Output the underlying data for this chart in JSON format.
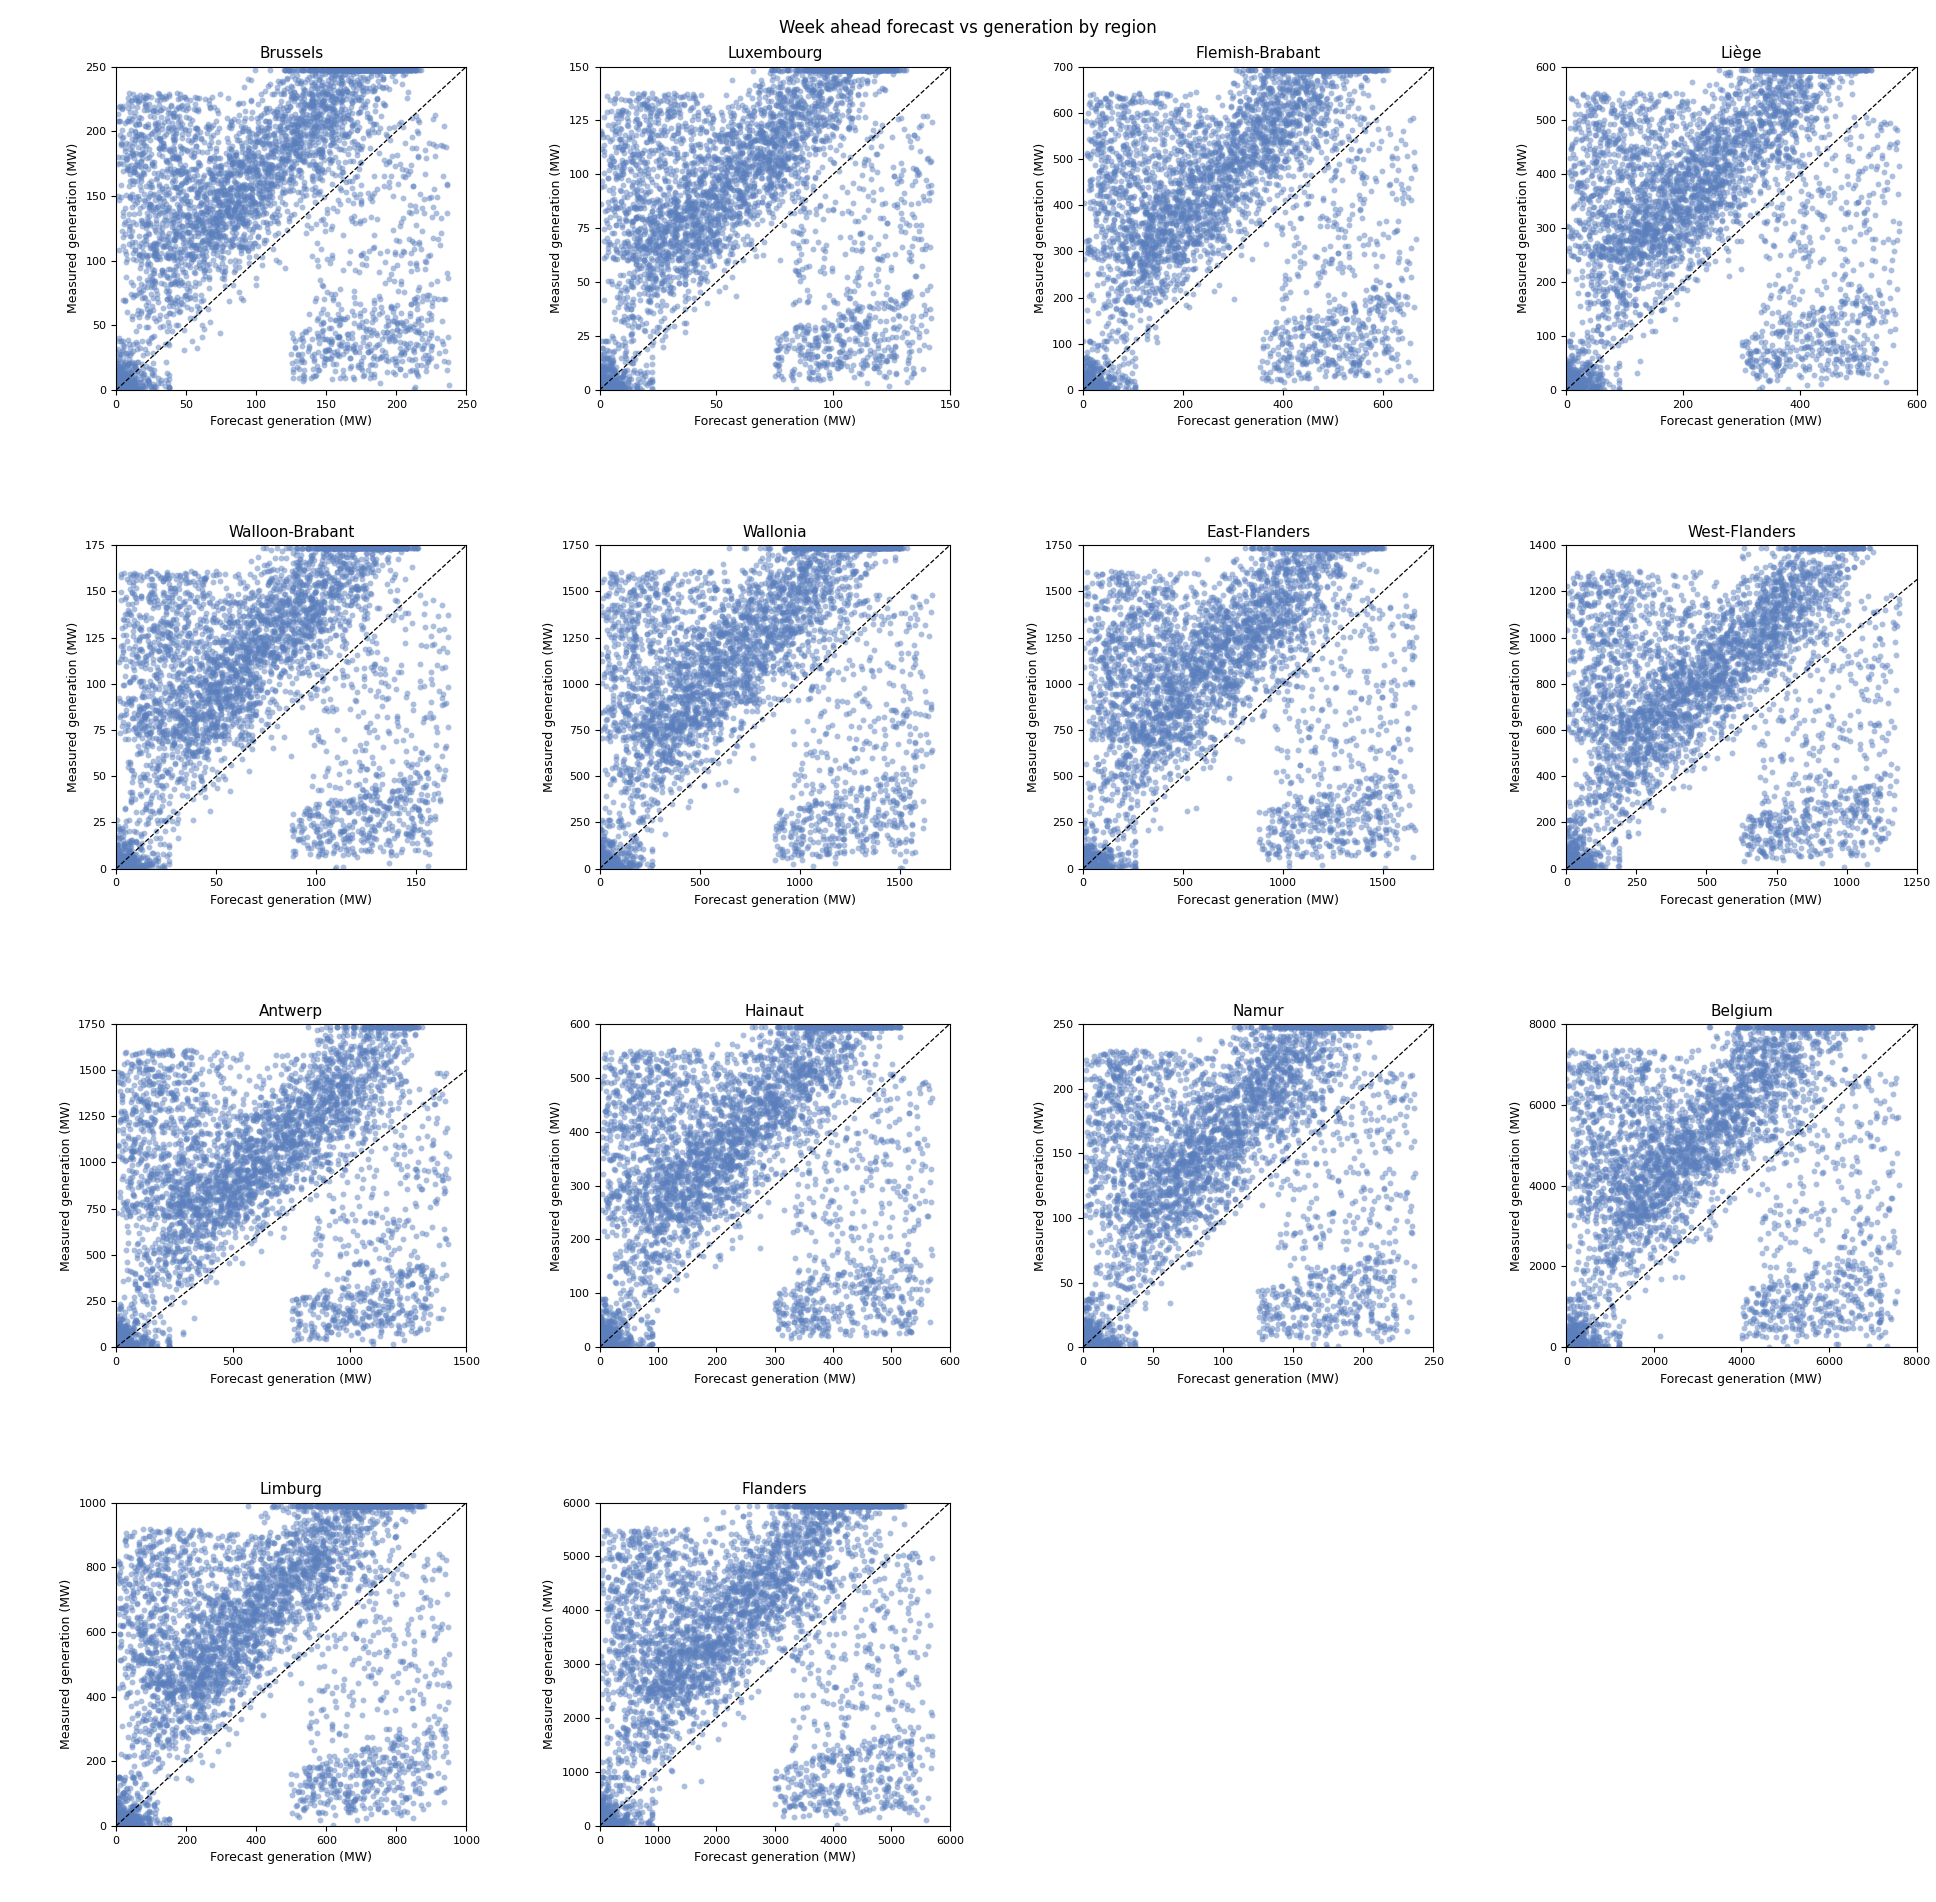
{
  "title": "Week ahead forecast vs generation by region",
  "subplots": [
    {
      "title": "Brussels",
      "xlim": [
        0,
        250
      ],
      "ylim": [
        0,
        250
      ],
      "xticks": [
        0,
        50,
        100,
        150,
        200,
        250
      ],
      "yticks": [
        0,
        50,
        100,
        150,
        200,
        250
      ]
    },
    {
      "title": "Luxembourg",
      "xlim": [
        0,
        150
      ],
      "ylim": [
        0,
        150
      ],
      "xticks": [
        0,
        50,
        100,
        150
      ],
      "yticks": [
        0,
        25,
        50,
        75,
        100,
        125,
        150
      ]
    },
    {
      "title": "Flemish-Brabant",
      "xlim": [
        0,
        700
      ],
      "ylim": [
        0,
        700
      ],
      "xticks": [
        0,
        200,
        400,
        600
      ],
      "yticks": [
        0,
        100,
        200,
        300,
        400,
        500,
        600,
        700
      ]
    },
    {
      "title": "Liège",
      "xlim": [
        0,
        600
      ],
      "ylim": [
        0,
        600
      ],
      "xticks": [
        0,
        200,
        400,
        600
      ],
      "yticks": [
        0,
        100,
        200,
        300,
        400,
        500,
        600
      ]
    },
    {
      "title": "Walloon-Brabant",
      "xlim": [
        0,
        175
      ],
      "ylim": [
        0,
        175
      ],
      "xticks": [
        0,
        50,
        100,
        150
      ],
      "yticks": [
        0,
        25,
        50,
        75,
        100,
        125,
        150,
        175
      ]
    },
    {
      "title": "Wallonia",
      "xlim": [
        0,
        1750
      ],
      "ylim": [
        0,
        1750
      ],
      "xticks": [
        0,
        500,
        1000,
        1500
      ],
      "yticks": [
        0,
        250,
        500,
        750,
        1000,
        1250,
        1500,
        1750
      ]
    },
    {
      "title": "East-Flanders",
      "xlim": [
        0,
        1750
      ],
      "ylim": [
        0,
        1750
      ],
      "xticks": [
        0,
        500,
        1000,
        1500
      ],
      "yticks": [
        0,
        250,
        500,
        750,
        1000,
        1250,
        1500,
        1750
      ]
    },
    {
      "title": "West-Flanders",
      "xlim": [
        0,
        1250
      ],
      "ylim": [
        0,
        1400
      ],
      "xticks": [
        0,
        250,
        500,
        750,
        1000,
        1250
      ],
      "yticks": [
        0,
        200,
        400,
        600,
        800,
        1000,
        1200,
        1400
      ]
    },
    {
      "title": "Antwerp",
      "xlim": [
        0,
        1500
      ],
      "ylim": [
        0,
        1750
      ],
      "xticks": [
        0,
        500,
        1000,
        1500
      ],
      "yticks": [
        0,
        250,
        500,
        750,
        1000,
        1250,
        1500,
        1750
      ]
    },
    {
      "title": "Hainaut",
      "xlim": [
        0,
        600
      ],
      "ylim": [
        0,
        600
      ],
      "xticks": [
        0,
        100,
        200,
        300,
        400,
        500,
        600
      ],
      "yticks": [
        0,
        100,
        200,
        300,
        400,
        500,
        600
      ]
    },
    {
      "title": "Namur",
      "xlim": [
        0,
        250
      ],
      "ylim": [
        0,
        250
      ],
      "xticks": [
        0,
        50,
        100,
        150,
        200,
        250
      ],
      "yticks": [
        0,
        50,
        100,
        150,
        200,
        250
      ]
    },
    {
      "title": "Belgium",
      "xlim": [
        0,
        8000
      ],
      "ylim": [
        0,
        8000
      ],
      "xticks": [
        0,
        2000,
        4000,
        6000,
        8000
      ],
      "yticks": [
        0,
        2000,
        4000,
        6000,
        8000
      ]
    },
    {
      "title": "Limburg",
      "xlim": [
        0,
        1000
      ],
      "ylim": [
        0,
        1000
      ],
      "xticks": [
        0,
        200,
        400,
        600,
        800,
        1000
      ],
      "yticks": [
        0,
        200,
        400,
        600,
        800,
        1000
      ]
    },
    {
      "title": "Flanders",
      "xlim": [
        0,
        6000
      ],
      "ylim": [
        0,
        6000
      ],
      "xticks": [
        0,
        1000,
        2000,
        3000,
        4000,
        5000,
        6000
      ],
      "yticks": [
        0,
        1000,
        2000,
        3000,
        4000,
        5000,
        6000
      ]
    }
  ],
  "dot_color": "#5b7fbd",
  "dot_alpha": 0.5,
  "dot_size": 18,
  "xlabel": "Forecast generation (MW)",
  "ylabel": "Measured generation (MW)",
  "title_fontsize": 11,
  "axis_label_fontsize": 9,
  "tick_fontsize": 8,
  "suptitle_fontsize": 12
}
